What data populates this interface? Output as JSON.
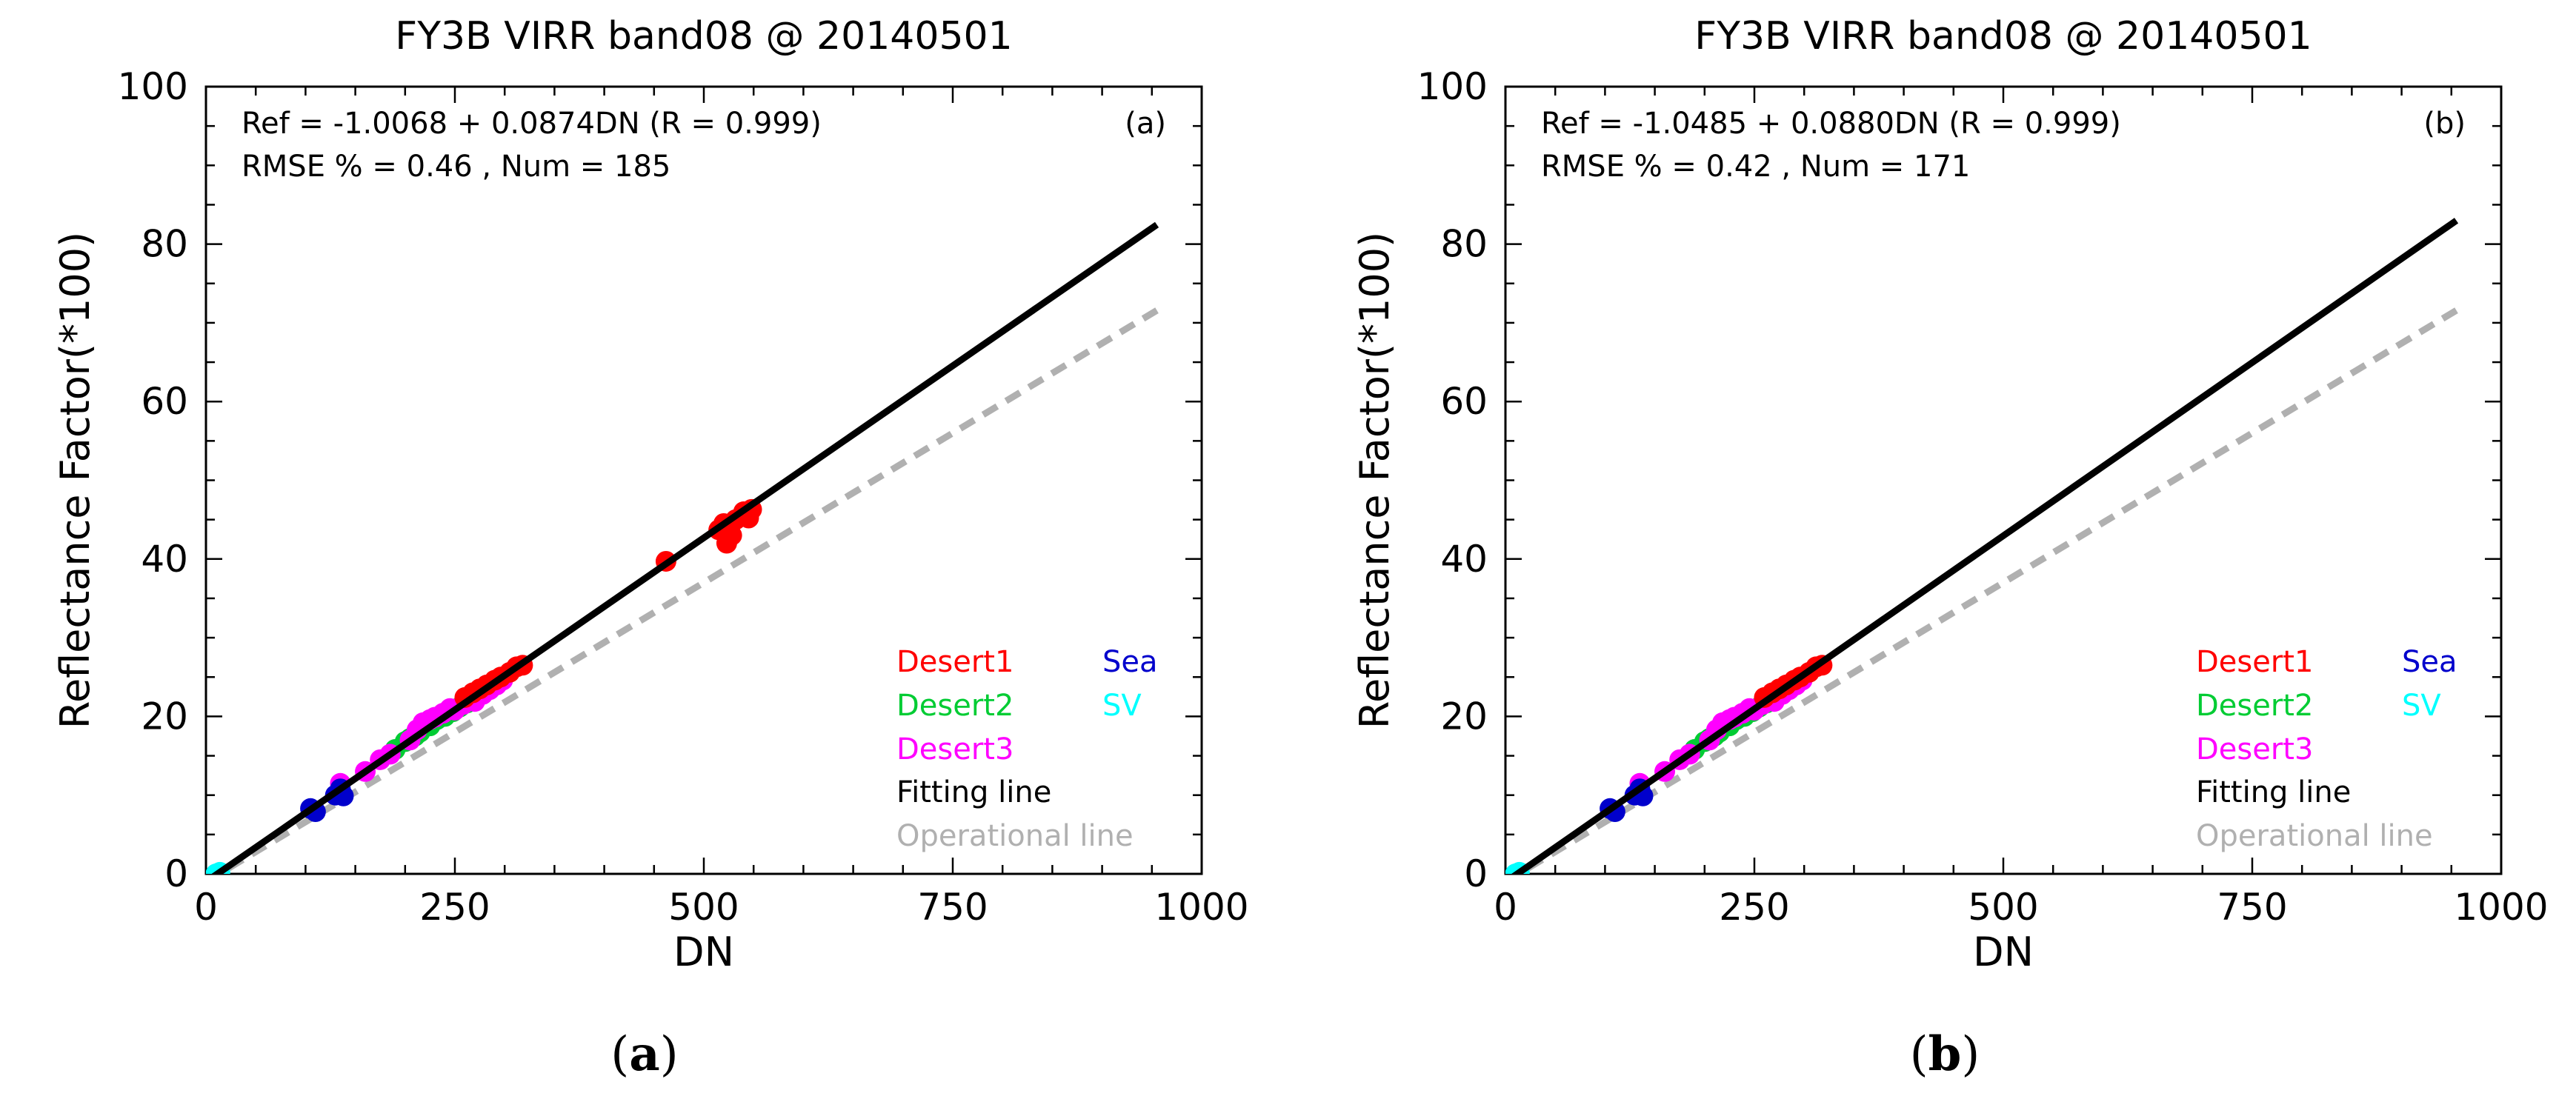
{
  "figure": {
    "panels": [
      {
        "caption_letter": "a",
        "annotation_line1": "Ref = -1.0068 + 0.0874DN (R = 0.999)",
        "annotation_line2": "RMSE % = 0.46 , Num = 185",
        "corner_label": "(a)"
      },
      {
        "caption_letter": "b",
        "annotation_line1": "Ref = -1.0485 + 0.0880DN (R = 0.999)",
        "annotation_line2": "RMSE % = 0.42 , Num = 171",
        "corner_label": "(b)"
      }
    ]
  },
  "colors": {
    "desert1": "#ff0000",
    "desert2": "#00cc33",
    "desert3": "#ff00ff",
    "sea": "#0000cc",
    "sv": "#00ffff",
    "fitting": "#000000",
    "operational": "#b0b0b0"
  },
  "chart_data": [
    {
      "type": "scatter",
      "title": "FY3B VIRR band08 @ 20140501",
      "xlabel": "DN",
      "ylabel": "Reflectance Factor(*100)",
      "xlim": [
        0,
        1000
      ],
      "ylim": [
        0,
        100
      ],
      "xticks": [
        "0",
        "250",
        "500",
        "750",
        "1000"
      ],
      "yticks": [
        "0",
        "20",
        "40",
        "60",
        "80",
        "100"
      ],
      "legend": {
        "placement": "bottom-right",
        "entries": [
          "Desert1",
          "Sea",
          "Desert2",
          "SV",
          "Desert3",
          "Fitting line",
          "Operational line"
        ]
      },
      "fitting_line": {
        "intercept": -1.0068,
        "slope": 0.0874,
        "x_range": [
          0,
          955
        ]
      },
      "operational_line": {
        "intercept": -1.0,
        "slope": 0.076,
        "x_range": [
          0,
          955
        ]
      },
      "series": [
        {
          "name": "SV",
          "color_key": "sv",
          "points": [
            [
              10,
              0.0
            ],
            [
              14,
              0.2
            ]
          ]
        },
        {
          "name": "Sea",
          "color_key": "sea",
          "points": [
            [
              105,
              8.3
            ],
            [
              110,
              7.9
            ],
            [
              130,
              10.0
            ],
            [
              135,
              10.8
            ],
            [
              138,
              9.9
            ]
          ]
        },
        {
          "name": "Desert2",
          "color_key": "desert2",
          "points": [
            [
              190,
              15.8
            ],
            [
              200,
              16.8
            ],
            [
              205,
              17.2
            ],
            [
              210,
              17.5
            ],
            [
              215,
              18.0
            ],
            [
              225,
              18.8
            ],
            [
              232,
              19.6
            ],
            [
              240,
              20.0
            ],
            [
              248,
              20.6
            ],
            [
              255,
              21.2
            ],
            [
              262,
              21.7
            ],
            [
              272,
              22.5
            ],
            [
              280,
              23.2
            ]
          ]
        },
        {
          "name": "Desert3",
          "color_key": "desert3",
          "points": [
            [
              135,
              11.5
            ],
            [
              160,
              13.0
            ],
            [
              175,
              14.5
            ],
            [
              185,
              15.2
            ],
            [
              205,
              17.0
            ],
            [
              212,
              18.3
            ],
            [
              218,
              19.2
            ],
            [
              225,
              19.6
            ],
            [
              230,
              19.9
            ],
            [
              238,
              20.4
            ],
            [
              245,
              21.0
            ],
            [
              250,
              20.8
            ],
            [
              258,
              21.5
            ],
            [
              265,
              22.2
            ],
            [
              270,
              21.9
            ],
            [
              278,
              22.8
            ],
            [
              285,
              23.4
            ],
            [
              292,
              24.0
            ],
            [
              298,
              24.6
            ]
          ]
        },
        {
          "name": "Desert1",
          "color_key": "desert1",
          "points": [
            [
              260,
              22.4
            ],
            [
              268,
              23.0
            ],
            [
              275,
              23.5
            ],
            [
              282,
              24.0
            ],
            [
              290,
              24.6
            ],
            [
              296,
              25.0
            ],
            [
              305,
              25.6
            ],
            [
              312,
              26.3
            ],
            [
              318,
              26.5
            ],
            [
              462,
              39.7
            ],
            [
              515,
              43.7
            ],
            [
              520,
              44.5
            ],
            [
              523,
              42.0
            ],
            [
              528,
              43.0
            ],
            [
              532,
              45.0
            ],
            [
              540,
              46.0
            ],
            [
              545,
              45.2
            ],
            [
              548,
              46.3
            ]
          ]
        }
      ]
    },
    {
      "type": "scatter",
      "title": "FY3B VIRR band08 @ 20140501",
      "xlabel": "DN",
      "ylabel": "Reflectance Factor(*100)",
      "xlim": [
        0,
        1000
      ],
      "ylim": [
        0,
        100
      ],
      "xticks": [
        "0",
        "250",
        "500",
        "750",
        "1000"
      ],
      "yticks": [
        "0",
        "20",
        "40",
        "60",
        "80",
        "100"
      ],
      "legend": {
        "placement": "bottom-right",
        "entries": [
          "Desert1",
          "Sea",
          "Desert2",
          "SV",
          "Desert3",
          "Fitting line",
          "Operational line"
        ]
      },
      "fitting_line": {
        "intercept": -1.0485,
        "slope": 0.088,
        "x_range": [
          0,
          955
        ]
      },
      "operational_line": {
        "intercept": -1.0,
        "slope": 0.076,
        "x_range": [
          0,
          955
        ]
      },
      "series": [
        {
          "name": "SV",
          "color_key": "sv",
          "points": [
            [
              10,
              0.0
            ],
            [
              14,
              0.2
            ]
          ]
        },
        {
          "name": "Sea",
          "color_key": "sea",
          "points": [
            [
              105,
              8.3
            ],
            [
              110,
              7.9
            ],
            [
              130,
              10.0
            ],
            [
              135,
              10.8
            ],
            [
              138,
              9.9
            ]
          ]
        },
        {
          "name": "Desert2",
          "color_key": "desert2",
          "points": [
            [
              190,
              15.8
            ],
            [
              200,
              16.8
            ],
            [
              205,
              17.2
            ],
            [
              210,
              17.5
            ],
            [
              215,
              18.0
            ],
            [
              225,
              18.8
            ],
            [
              232,
              19.6
            ],
            [
              240,
              20.0
            ],
            [
              248,
              20.6
            ],
            [
              255,
              21.2
            ],
            [
              262,
              21.7
            ],
            [
              272,
              22.5
            ],
            [
              280,
              23.2
            ]
          ]
        },
        {
          "name": "Desert3",
          "color_key": "desert3",
          "points": [
            [
              135,
              11.5
            ],
            [
              160,
              13.0
            ],
            [
              175,
              14.5
            ],
            [
              185,
              15.2
            ],
            [
              205,
              17.0
            ],
            [
              212,
              18.3
            ],
            [
              218,
              19.2
            ],
            [
              225,
              19.6
            ],
            [
              230,
              19.9
            ],
            [
              238,
              20.4
            ],
            [
              245,
              21.0
            ],
            [
              250,
              20.8
            ],
            [
              258,
              21.5
            ],
            [
              265,
              22.2
            ],
            [
              270,
              21.9
            ],
            [
              278,
              22.8
            ],
            [
              285,
              23.4
            ],
            [
              292,
              24.0
            ],
            [
              298,
              24.6
            ]
          ]
        },
        {
          "name": "Desert1",
          "color_key": "desert1",
          "points": [
            [
              260,
              22.4
            ],
            [
              268,
              23.0
            ],
            [
              275,
              23.5
            ],
            [
              282,
              24.0
            ],
            [
              290,
              24.6
            ],
            [
              296,
              25.0
            ],
            [
              305,
              25.6
            ],
            [
              312,
              26.3
            ],
            [
              318,
              26.5
            ]
          ]
        }
      ]
    }
  ]
}
